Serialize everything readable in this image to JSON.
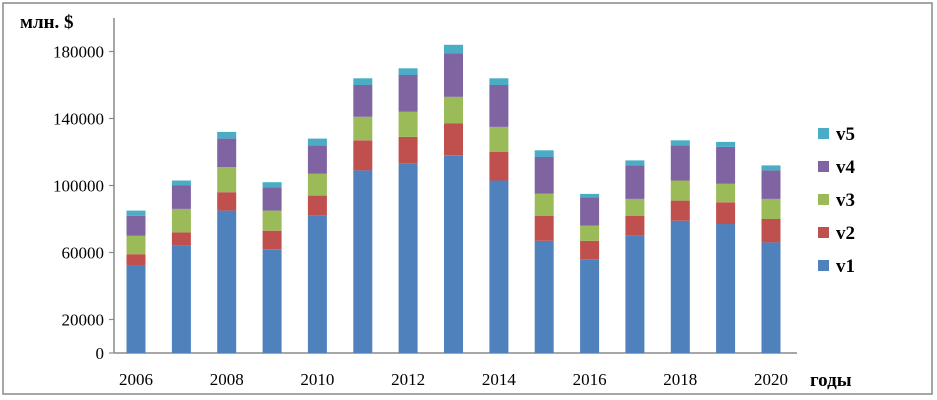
{
  "chart_data": {
    "type": "bar",
    "stacked": true,
    "ylabel": "млн. $",
    "xlabel": "годы",
    "ylim": [
      0,
      200000
    ],
    "yticks": [
      0,
      20000,
      60000,
      100000,
      140000,
      180000
    ],
    "xticks": [
      "2006",
      "2008",
      "2010",
      "2012",
      "2014",
      "2016",
      "2018",
      "2020"
    ],
    "categories": [
      "2006",
      "2007",
      "2008",
      "2009",
      "2010",
      "2011",
      "2012",
      "2013",
      "2014",
      "2015",
      "2016",
      "2017",
      "2018",
      "2019",
      "2020"
    ],
    "grid": false,
    "legend": "right",
    "series": [
      {
        "name": "v1",
        "color": "#4f81bd",
        "values": [
          52000,
          64000,
          85000,
          62000,
          82000,
          109000,
          113000,
          118000,
          103000,
          67000,
          56000,
          70000,
          79000,
          77000,
          66000
        ]
      },
      {
        "name": "v2",
        "color": "#c0504d",
        "values": [
          7000,
          8000,
          11000,
          11000,
          12000,
          18000,
          16000,
          19000,
          17000,
          15000,
          11000,
          12000,
          12000,
          13000,
          14000
        ]
      },
      {
        "name": "v3",
        "color": "#9bbb59",
        "values": [
          11000,
          14000,
          15000,
          12000,
          13000,
          14000,
          15000,
          16000,
          15000,
          13000,
          9000,
          10000,
          12000,
          11000,
          12000
        ]
      },
      {
        "name": "v4",
        "color": "#8064a2",
        "values": [
          12000,
          14000,
          17000,
          14000,
          17000,
          19000,
          22000,
          26000,
          25000,
          22000,
          17000,
          20000,
          21000,
          22000,
          17000
        ]
      },
      {
        "name": "v5",
        "color": "#4bacc6",
        "values": [
          3000,
          3000,
          4000,
          3000,
          4000,
          4000,
          4000,
          5000,
          4000,
          4000,
          2000,
          3000,
          3000,
          3000,
          3000
        ]
      }
    ]
  }
}
